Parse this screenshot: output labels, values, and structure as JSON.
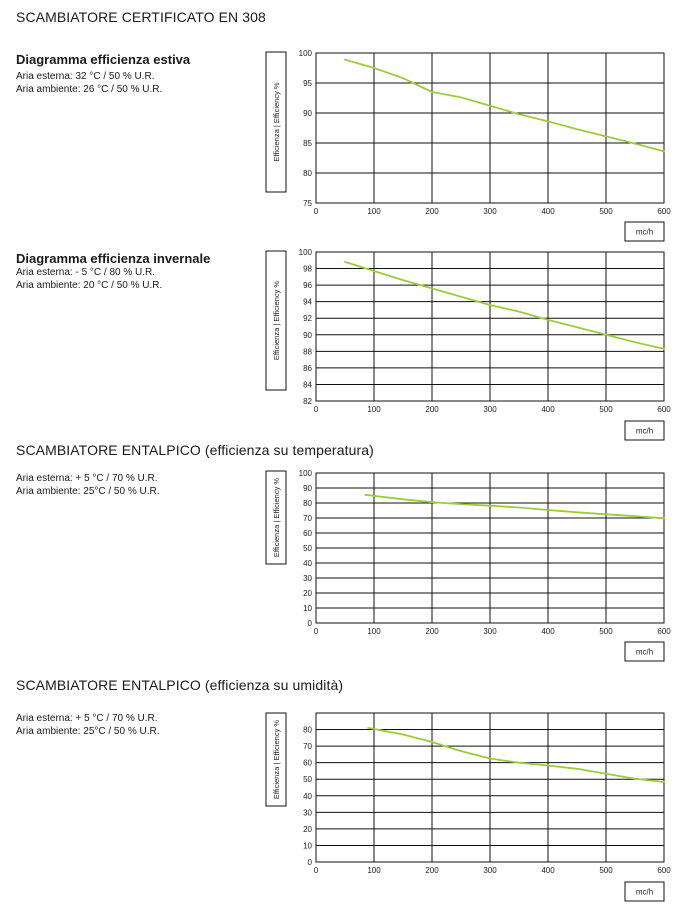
{
  "sections": {
    "s1": {
      "title": "SCAMBIATORE CERTIFICATO EN 308",
      "subtitle": "Diagramma efficienza estiva",
      "conditions": [
        "Aria esterna: 32 °C / 50 % U.R.",
        "Aria ambiente: 26 °C / 50 % U.R."
      ]
    },
    "s2": {
      "subtitle": "Diagramma efficienza invernale",
      "conditions": [
        "Aria esterna: - 5 °C / 80 % U.R.",
        "Aria ambiente: 20 °C / 50 % U.R."
      ]
    },
    "s3": {
      "title": "SCAMBIATORE ENTALPICO (efficienza su temperatura)",
      "conditions": [
        "Aria esterna: + 5 °C / 70 % U.R.",
        "Aria ambiente: 25°C / 50 % U.R."
      ]
    },
    "s4": {
      "title": "SCAMBIATORE ENTALPICO (efficienza su umidità)",
      "conditions": [
        "Aria esterna: + 5 °C / 70 % U.R.",
        "Aria ambiente: 25°C / 50 % U.R."
      ]
    }
  },
  "line_color": "#9ccc3c",
  "chart_data": [
    {
      "type": "line",
      "ylabel": "Efficienza | Efficiency %",
      "xlabel": "mc/h",
      "xlim": [
        0,
        600
      ],
      "ylim": [
        75,
        100
      ],
      "xticks": [
        0,
        100,
        200,
        300,
        400,
        500,
        600
      ],
      "yticks": [
        75,
        80,
        85,
        90,
        95,
        100
      ],
      "grid": true,
      "series": [
        {
          "x": [
            50,
            100,
            150,
            200,
            250,
            300,
            350,
            400,
            450,
            500,
            550,
            600
          ],
          "values": [
            98.9,
            97.5,
            95.8,
            93.5,
            92.6,
            91.2,
            89.8,
            88.6,
            87.3,
            86.1,
            84.9,
            83.6
          ]
        }
      ]
    },
    {
      "type": "line",
      "ylabel": "Efficienza | Efficiency %",
      "xlabel": "mc/h",
      "xlim": [
        0,
        600
      ],
      "ylim": [
        82,
        100
      ],
      "xticks": [
        0,
        100,
        200,
        300,
        400,
        500,
        600
      ],
      "yticks": [
        82,
        84,
        86,
        88,
        90,
        92,
        94,
        96,
        98,
        100
      ],
      "grid": true,
      "series": [
        {
          "x": [
            50,
            100,
            150,
            200,
            250,
            300,
            350,
            400,
            450,
            500,
            550,
            600
          ],
          "values": [
            98.8,
            97.7,
            96.6,
            95.6,
            94.6,
            93.6,
            92.8,
            91.8,
            90.9,
            90.0,
            89.1,
            88.3
          ]
        }
      ]
    },
    {
      "type": "line",
      "ylabel": "Efficienza | Efficiency %",
      "xlabel": "mc/h",
      "xlim": [
        0,
        600
      ],
      "ylim": [
        0,
        100
      ],
      "xticks": [
        0,
        100,
        200,
        300,
        400,
        500,
        600
      ],
      "yticks": [
        0,
        10,
        20,
        30,
        40,
        50,
        60,
        70,
        80,
        90,
        100
      ],
      "grid": true,
      "series": [
        {
          "x": [
            85,
            150,
            200,
            250,
            300,
            350,
            400,
            450,
            500,
            550,
            600
          ],
          "values": [
            85.5,
            82.5,
            80.5,
            79.3,
            78.2,
            77,
            75.3,
            73.8,
            72.5,
            71.2,
            69.8
          ]
        }
      ]
    },
    {
      "type": "line",
      "ylabel": "Efficienza | Efficiency %",
      "xlabel": "mc/h",
      "xlim": [
        0,
        600
      ],
      "ylim": [
        0,
        90
      ],
      "xticks": [
        0,
        100,
        200,
        300,
        400,
        500,
        600
      ],
      "yticks": [
        0,
        10,
        20,
        30,
        40,
        50,
        60,
        70,
        80
      ],
      "grid": true,
      "series": [
        {
          "x": [
            90,
            150,
            200,
            250,
            300,
            350,
            400,
            450,
            500,
            550,
            600
          ],
          "values": [
            81,
            77,
            72.5,
            67,
            62.5,
            60,
            58.3,
            56.3,
            53.3,
            50.3,
            48.3
          ]
        }
      ]
    }
  ]
}
